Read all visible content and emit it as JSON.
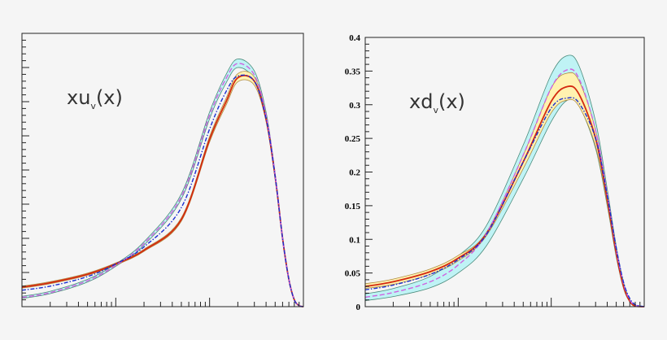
{
  "chart_data": [
    {
      "type": "line",
      "title": "",
      "annotation": {
        "base": "xu",
        "sub": "v",
        "tail": "(x)"
      },
      "xlabel": "",
      "ylabel": "",
      "xscale": "log",
      "xlim": [
        0.001,
        1
      ],
      "ylim": [
        0,
        0.8
      ],
      "y_tick_labels": [],
      "y_major_step": 0.1,
      "y_minor_step": 0.02,
      "x": [
        0.001,
        0.002,
        0.005,
        0.01,
        0.02,
        0.05,
        0.1,
        0.15,
        0.2,
        0.3,
        0.4,
        0.5,
        0.6,
        0.7,
        0.8,
        0.9,
        1
      ],
      "bands": [
        {
          "name": "cyan band",
          "color": "#bff3f5",
          "edge": "#4a8a7a",
          "upper": [
            0.03,
            0.045,
            0.08,
            0.125,
            0.19,
            0.33,
            0.57,
            0.68,
            0.725,
            0.69,
            0.57,
            0.39,
            0.2,
            0.08,
            0.02,
            0.003,
            0
          ],
          "lower": [
            0.024,
            0.038,
            0.072,
            0.118,
            0.18,
            0.315,
            0.55,
            0.655,
            0.7,
            0.665,
            0.55,
            0.38,
            0.2,
            0.08,
            0.02,
            0.003,
            0
          ]
        },
        {
          "name": "yellow band",
          "color": "#fff2b0",
          "edge": "#b08a40",
          "upper": [
            0.06,
            0.073,
            0.098,
            0.128,
            0.168,
            0.26,
            0.498,
            0.61,
            0.682,
            0.672,
            0.558,
            0.386,
            0.203,
            0.081,
            0.02,
            0.003,
            0
          ],
          "lower": [
            0.054,
            0.067,
            0.092,
            0.122,
            0.162,
            0.25,
            0.482,
            0.59,
            0.658,
            0.648,
            0.542,
            0.374,
            0.197,
            0.079,
            0.02,
            0.003,
            0
          ]
        }
      ],
      "series": [
        {
          "name": "red solid",
          "color": "#d42a10",
          "style": "solid",
          "values": [
            0.057,
            0.07,
            0.095,
            0.125,
            0.165,
            0.255,
            0.49,
            0.6,
            0.67,
            0.66,
            0.55,
            0.38,
            0.2,
            0.08,
            0.02,
            0.003,
            0
          ]
        },
        {
          "name": "magenta dashed",
          "color": "#d060e0",
          "style": "dashed",
          "values": [
            0.027,
            0.041,
            0.076,
            0.121,
            0.185,
            0.322,
            0.56,
            0.668,
            0.712,
            0.678,
            0.56,
            0.385,
            0.2,
            0.08,
            0.02,
            0.003,
            0
          ]
        },
        {
          "name": "blue dash-dot",
          "color": "#1a2ed0",
          "style": "dashdot",
          "values": [
            0.048,
            0.06,
            0.088,
            0.125,
            0.175,
            0.29,
            0.52,
            0.63,
            0.675,
            0.66,
            0.55,
            0.38,
            0.2,
            0.08,
            0.02,
            0.003,
            0
          ]
        }
      ]
    },
    {
      "type": "line",
      "title": "",
      "annotation": {
        "base": "xd",
        "sub": "v",
        "tail": "(x)"
      },
      "xlabel": "",
      "ylabel": "",
      "xscale": "log",
      "xlim": [
        0.001,
        1
      ],
      "ylim": [
        0,
        0.4
      ],
      "y_tick_labels": [
        "0",
        "0.05",
        "0.1",
        "0.15",
        "0.2",
        "0.25",
        "0.3",
        "0.35",
        "0.4"
      ],
      "y_major_step": 0.05,
      "y_minor_step": 0.01,
      "x": [
        0.001,
        0.002,
        0.005,
        0.01,
        0.02,
        0.05,
        0.1,
        0.15,
        0.2,
        0.3,
        0.4,
        0.5,
        0.6,
        0.7,
        0.8,
        1
      ],
      "bands": [
        {
          "name": "cyan band",
          "color": "#bff3f5",
          "edge": "#4a8a7a",
          "upper": [
            0.019,
            0.027,
            0.045,
            0.075,
            0.12,
            0.24,
            0.345,
            0.373,
            0.357,
            0.275,
            0.175,
            0.09,
            0.036,
            0.01,
            0.002,
            0
          ],
          "lower": [
            0.009,
            0.015,
            0.028,
            0.05,
            0.09,
            0.19,
            0.275,
            0.307,
            0.298,
            0.235,
            0.15,
            0.074,
            0.027,
            0.007,
            0.001,
            0
          ]
        },
        {
          "name": "yellow band",
          "color": "#fff2b0",
          "edge": "#b08a40",
          "upper": [
            0.034,
            0.041,
            0.056,
            0.076,
            0.11,
            0.225,
            0.325,
            0.347,
            0.335,
            0.262,
            0.165,
            0.083,
            0.032,
            0.009,
            0.001,
            0
          ],
          "lower": [
            0.027,
            0.033,
            0.048,
            0.068,
            0.105,
            0.205,
            0.288,
            0.307,
            0.297,
            0.238,
            0.152,
            0.076,
            0.028,
            0.007,
            0.001,
            0
          ]
        }
      ],
      "series": [
        {
          "name": "red solid",
          "color": "#d42a10",
          "style": "solid",
          "values": [
            0.03,
            0.037,
            0.052,
            0.072,
            0.108,
            0.215,
            0.305,
            0.327,
            0.315,
            0.25,
            0.16,
            0.08,
            0.03,
            0.008,
            0.001,
            0
          ]
        },
        {
          "name": "magenta dashed",
          "color": "#d060e0",
          "style": "dashed",
          "values": [
            0.014,
            0.021,
            0.037,
            0.062,
            0.108,
            0.225,
            0.325,
            0.352,
            0.338,
            0.262,
            0.167,
            0.085,
            0.034,
            0.01,
            0.002,
            0
          ]
        },
        {
          "name": "blue dash-dot",
          "color": "#1a2ed0",
          "style": "dashdot",
          "values": [
            0.025,
            0.032,
            0.048,
            0.07,
            0.107,
            0.215,
            0.295,
            0.31,
            0.302,
            0.25,
            0.165,
            0.087,
            0.036,
            0.012,
            0.003,
            0
          ]
        }
      ]
    }
  ]
}
